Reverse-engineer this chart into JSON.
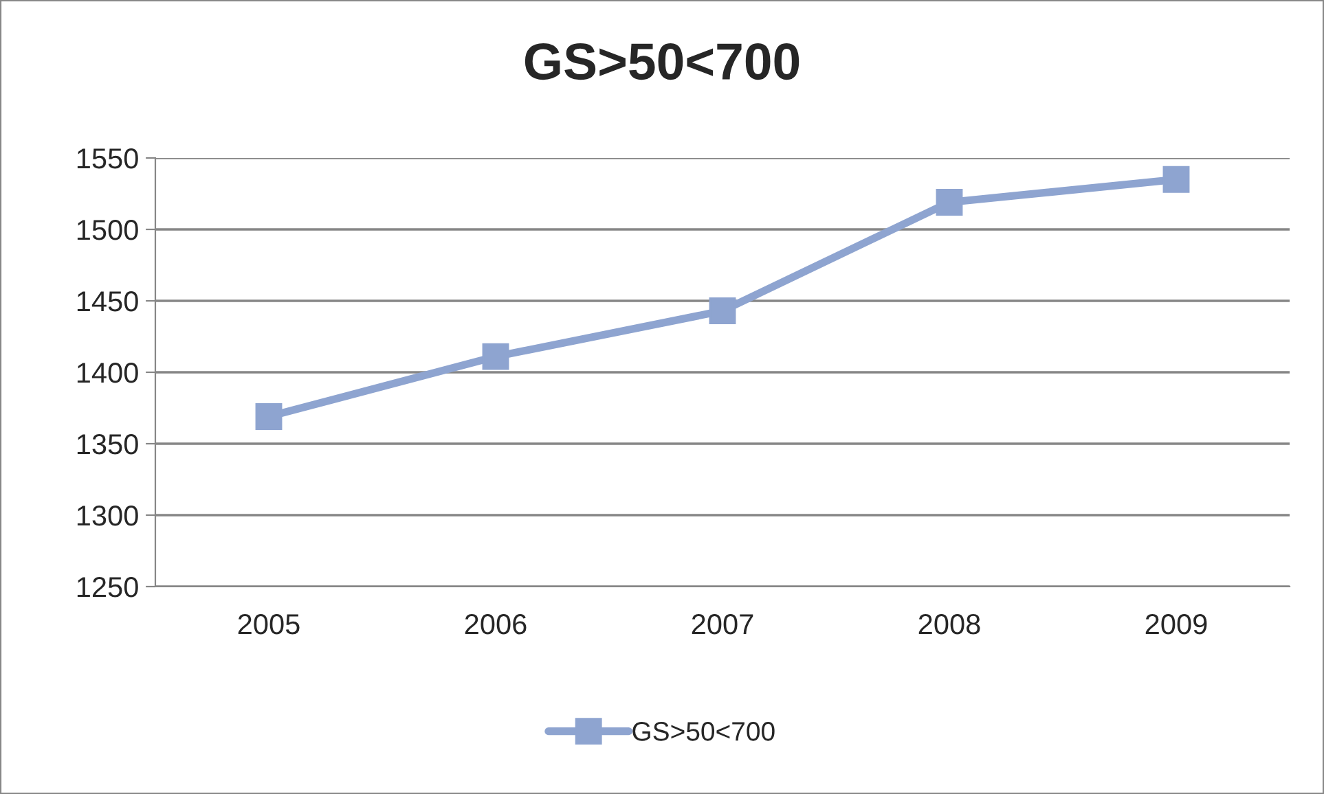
{
  "chart_data": {
    "type": "line",
    "title": "GS>50<700",
    "categories": [
      "2005",
      "2006",
      "2007",
      "2008",
      "2009"
    ],
    "series": [
      {
        "name": "GS>50<700",
        "color": "#8ea4d0",
        "values": [
          1369,
          1411,
          1443,
          1519,
          1535
        ]
      }
    ],
    "ylim": [
      1250,
      1550
    ],
    "yticks": [
      1250,
      1300,
      1350,
      1400,
      1450,
      1500,
      1550
    ],
    "grid": "y",
    "legend": "bottom",
    "marker": "square",
    "line_style": "solid"
  }
}
